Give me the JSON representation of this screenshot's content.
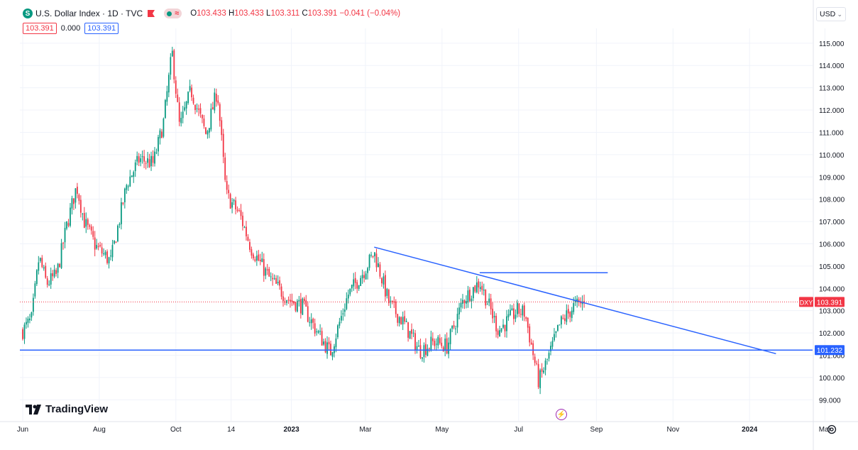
{
  "header": {
    "symbol_badge": "S",
    "title": "U.S. Dollar Index · 1D · TVC",
    "status_symbol": "≈",
    "ohlc": {
      "o_label": "O",
      "o_value": "103.433",
      "h_label": "H",
      "h_value": "103.433",
      "l_label": "L",
      "l_value": "103.311",
      "c_label": "C",
      "c_value": "103.391",
      "change": "−0.041 (−0.04%)"
    },
    "indicator_values": [
      "103.391",
      "0.000",
      "103.391"
    ]
  },
  "currency": {
    "label": "USD",
    "chevron": "⌄"
  },
  "logo": {
    "text": "TradingView"
  },
  "bolt": {
    "symbol": "⚡"
  },
  "colors": {
    "up": "#089981",
    "down": "#f23645",
    "trendline": "#2962ff",
    "grid": "#f0f3fa",
    "axis_text": "#131722"
  },
  "chart_data": {
    "type": "candlestick",
    "symbol": "DXY",
    "interval": "1D",
    "ylim": [
      98.5,
      115.6
    ],
    "y_ticks": [
      "115.000",
      "114.000",
      "113.000",
      "112.000",
      "111.000",
      "110.000",
      "109.000",
      "108.000",
      "107.000",
      "106.000",
      "105.000",
      "104.000",
      "103.000",
      "102.000",
      "101.000",
      "100.000",
      "99.000"
    ],
    "x_ticks": [
      "Jun",
      "Aug",
      "Oct",
      "14",
      "2023",
      "Mar",
      "May",
      "Jul",
      "Sep",
      "Nov",
      "2024",
      "Mar"
    ],
    "last_price": {
      "label": "DXY",
      "value": "103.391",
      "price": 103.391
    },
    "support_level": {
      "value": "101.232",
      "price": 101.232
    },
    "trendline": {
      "start": [
        "2023-03-08",
        105.85
      ],
      "end": [
        "2024-01-22",
        101.07
      ]
    },
    "horizontal_segment": {
      "start": [
        "2023-05-31",
        104.7
      ],
      "end": [
        "2023-09-10",
        104.7
      ]
    },
    "price_path": [
      [
        "2022-06-01",
        102.1
      ],
      [
        "2022-06-08",
        102.6
      ],
      [
        "2022-06-14",
        105.4
      ],
      [
        "2022-06-20",
        104.2
      ],
      [
        "2022-06-28",
        104.6
      ],
      [
        "2022-07-06",
        106.8
      ],
      [
        "2022-07-14",
        108.6
      ],
      [
        "2022-07-20",
        107.0
      ],
      [
        "2022-07-29",
        105.9
      ],
      [
        "2022-08-10",
        105.2
      ],
      [
        "2022-08-23",
        108.7
      ],
      [
        "2022-09-02",
        109.8
      ],
      [
        "2022-09-13",
        109.6
      ],
      [
        "2022-09-21",
        111.4
      ],
      [
        "2022-09-28",
        114.6
      ],
      [
        "2022-10-04",
        111.2
      ],
      [
        "2022-10-13",
        112.9
      ],
      [
        "2022-10-25",
        110.9
      ],
      [
        "2022-11-03",
        112.9
      ],
      [
        "2022-11-10",
        108.2
      ],
      [
        "2022-11-21",
        107.3
      ],
      [
        "2022-11-30",
        105.8
      ],
      [
        "2022-12-15",
        104.4
      ],
      [
        "2022-12-30",
        103.5
      ],
      [
        "2023-01-10",
        103.2
      ],
      [
        "2023-01-20",
        102.2
      ],
      [
        "2023-02-01",
        101.1
      ],
      [
        "2023-02-15",
        103.7
      ],
      [
        "2023-02-28",
        104.8
      ],
      [
        "2023-03-08",
        105.6
      ],
      [
        "2023-03-20",
        103.3
      ],
      [
        "2023-03-31",
        102.5
      ],
      [
        "2023-04-13",
        101.2
      ],
      [
        "2023-04-25",
        101.6
      ],
      [
        "2023-05-05",
        101.4
      ],
      [
        "2023-05-18",
        103.5
      ],
      [
        "2023-05-31",
        104.3
      ],
      [
        "2023-06-15",
        102.1
      ],
      [
        "2023-06-30",
        103.0
      ],
      [
        "2023-07-06",
        102.9
      ],
      [
        "2023-07-17",
        99.8
      ],
      [
        "2023-07-26",
        101.1
      ],
      [
        "2023-08-03",
        102.4
      ],
      [
        "2023-08-14",
        103.2
      ],
      [
        "2023-08-23",
        103.391
      ]
    ]
  }
}
